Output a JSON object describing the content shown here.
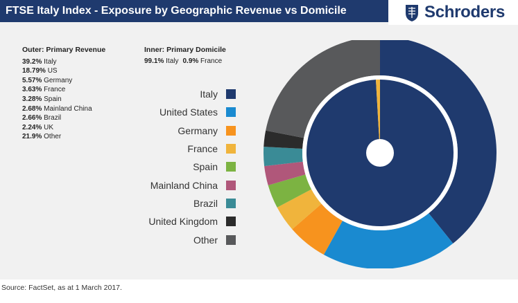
{
  "header": {
    "title": "FTSE Italy Index - Exposure by Geographic Revenue vs Domicile",
    "brand": "Schroders"
  },
  "outer_block": {
    "heading": "Outer: Primary Revenue",
    "rows": [
      {
        "pct": "39.2%",
        "label": "Italy"
      },
      {
        "pct": "18.79%",
        "label": "US"
      },
      {
        "pct": "5.57%",
        "label": "Germany"
      },
      {
        "pct": "3.63%",
        "label": "France"
      },
      {
        "pct": "3.28%",
        "label": "Spain"
      },
      {
        "pct": "2.68%",
        "label": "Mainland China"
      },
      {
        "pct": "2.66%",
        "label": "Brazil"
      },
      {
        "pct": "2.24%",
        "label": "UK"
      },
      {
        "pct": "21.9%",
        "label": "Other"
      }
    ]
  },
  "inner_block": {
    "heading": "Inner: Primary Domicile",
    "rows": [
      {
        "pct": "99.1%",
        "label": "Italy"
      },
      {
        "pct": "0.9%",
        "label": "France"
      }
    ]
  },
  "legend": [
    {
      "label": "Italy",
      "color": "#1f3a6e"
    },
    {
      "label": "United States",
      "color": "#1a8ad0"
    },
    {
      "label": "Germany",
      "color": "#f7931e"
    },
    {
      "label": "France",
      "color": "#f0b43c"
    },
    {
      "label": "Spain",
      "color": "#7cb342"
    },
    {
      "label": "Mainland China",
      "color": "#b0577a"
    },
    {
      "label": "Brazil",
      "color": "#3a8b96"
    },
    {
      "label": "United Kingdom",
      "color": "#2b2b2b"
    },
    {
      "label": "Other",
      "color": "#58595b"
    }
  ],
  "chart_data": {
    "type": "pie",
    "series": [
      {
        "name": "Outer: Primary Revenue",
        "categories": [
          "Italy",
          "United States",
          "Germany",
          "France",
          "Spain",
          "Mainland China",
          "Brazil",
          "United Kingdom",
          "Other"
        ],
        "values": [
          39.2,
          18.79,
          5.57,
          3.63,
          3.28,
          2.68,
          2.66,
          2.24,
          21.9
        ]
      },
      {
        "name": "Inner: Primary Domicile",
        "categories": [
          "Italy",
          "France"
        ],
        "values": [
          99.1,
          0.9
        ]
      }
    ]
  },
  "source": "Source: FactSet, as at 1 March 2017."
}
